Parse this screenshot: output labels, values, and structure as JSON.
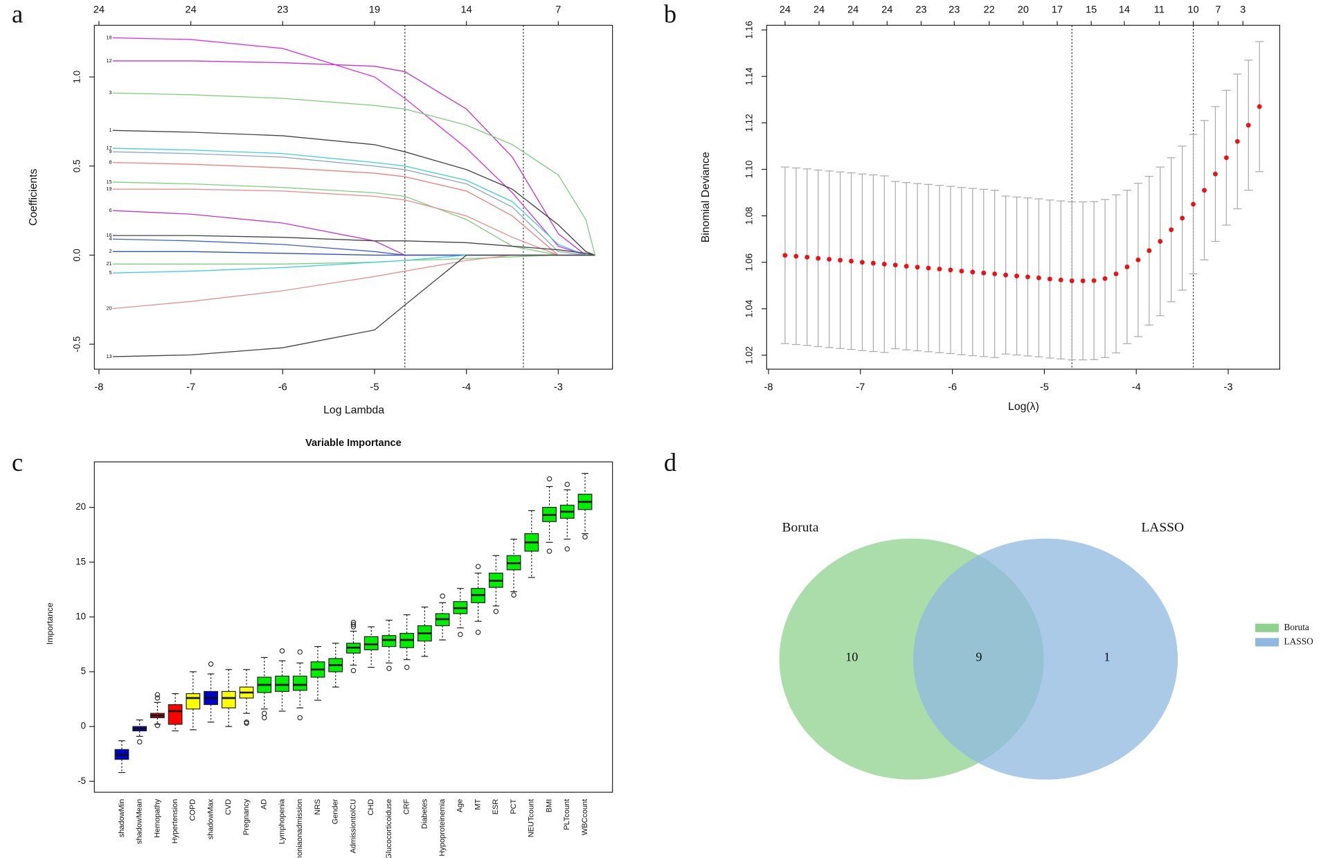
{
  "chart_data": [
    {
      "type": "line",
      "panel_label": "a",
      "x_label": "Log Lambda",
      "y_label": "Coefficients",
      "xlim": [
        -8.05,
        -2.41
      ],
      "xticks": [
        -8,
        -7,
        -6,
        -5,
        -4,
        -3
      ],
      "ylim": [
        -0.64,
        1.29
      ],
      "yticks": [
        -0.5,
        {
          "value": 0,
          "label": "0.0"
        },
        0.5,
        {
          "value": 1,
          "label": "1.0"
        }
      ],
      "top_ticks": [
        {
          "value": -8,
          "label": "24"
        },
        {
          "value": -7,
          "label": "24"
        },
        {
          "value": -6,
          "label": "23"
        },
        {
          "value": -5,
          "label": "19"
        },
        {
          "value": -4,
          "label": "14"
        },
        {
          "value": -3,
          "label": "7"
        }
      ],
      "vlines": [
        -4.67,
        -3.38
      ],
      "x": [
        -7.85,
        -7,
        -6,
        -5,
        -4.67,
        -4,
        -3.5,
        -3,
        -2.7,
        -2.6
      ],
      "series": [
        {
          "name": "18",
          "color": "#e033e0",
          "values": [
            1.22,
            1.21,
            1.16,
            1.0,
            0.88,
            0.6,
            0.35,
            0.05,
            0,
            0
          ]
        },
        {
          "name": "12",
          "color": "#cc33cc",
          "values": [
            1.09,
            1.09,
            1.08,
            1.06,
            1.03,
            0.82,
            0.55,
            0.12,
            0,
            0
          ]
        },
        {
          "name": "3",
          "color": "#7fcf7f",
          "values": [
            0.91,
            0.9,
            0.88,
            0.84,
            0.82,
            0.73,
            0.62,
            0.45,
            0.2,
            0
          ]
        },
        {
          "name": "1",
          "color": "#444444",
          "values": [
            0.7,
            0.69,
            0.67,
            0.62,
            0.58,
            0.48,
            0.37,
            0.17,
            0.02,
            0
          ]
        },
        {
          "name": "17",
          "color": "#40d0e0",
          "values": [
            0.6,
            0.59,
            0.57,
            0.52,
            0.5,
            0.42,
            0.3,
            0.06,
            0,
            0
          ]
        },
        {
          "name": "9",
          "color": "#8fa8c8",
          "values": [
            0.58,
            0.57,
            0.55,
            0.5,
            0.48,
            0.4,
            0.27,
            0.02,
            0,
            0
          ]
        },
        {
          "name": "8",
          "color": "#f08080",
          "values": [
            0.52,
            0.51,
            0.49,
            0.46,
            0.44,
            0.36,
            0.22,
            0,
            0,
            0
          ]
        },
        {
          "name": "15",
          "color": "#7fcf7f",
          "values": [
            0.41,
            0.4,
            0.38,
            0.35,
            0.33,
            0.2,
            0.05,
            0,
            0,
            0
          ]
        },
        {
          "name": "19",
          "color": "#e89090",
          "values": [
            0.37,
            0.37,
            0.36,
            0.33,
            0.31,
            0.22,
            0.1,
            0,
            0,
            0
          ]
        },
        {
          "name": "6",
          "color": "#cc33cc",
          "values": [
            0.25,
            0.23,
            0.18,
            0.08,
            0,
            0,
            0,
            0,
            0,
            0
          ]
        },
        {
          "name": "16",
          "color": "#444444",
          "values": [
            0.11,
            0.11,
            0.1,
            0.08,
            0.08,
            0.07,
            0.05,
            0.03,
            0.01,
            0
          ]
        },
        {
          "name": "4",
          "color": "#4060e0",
          "values": [
            0.09,
            0.08,
            0.06,
            0.02,
            0,
            0,
            0,
            0,
            0,
            0
          ]
        },
        {
          "name": "2",
          "color": "#3050d0",
          "values": [
            0.02,
            0.02,
            0.01,
            0,
            0,
            0,
            0,
            0,
            0,
            0
          ]
        },
        {
          "name": "21",
          "color": "#7fcf7f",
          "values": [
            -0.05,
            -0.05,
            -0.05,
            -0.04,
            -0.03,
            -0.02,
            -0.01,
            0,
            0,
            0
          ]
        },
        {
          "name": "5",
          "color": "#40d0e0",
          "values": [
            -0.1,
            -0.09,
            -0.07,
            -0.04,
            -0.03,
            0,
            0,
            0,
            0,
            0
          ]
        },
        {
          "name": "20",
          "color": "#e89090",
          "values": [
            -0.3,
            -0.26,
            -0.2,
            -0.12,
            -0.09,
            -0.03,
            0,
            0,
            0,
            0
          ]
        },
        {
          "name": "13",
          "color": "#444444",
          "values": [
            -0.57,
            -0.56,
            -0.52,
            -0.42,
            -0.28,
            0,
            0,
            0,
            0,
            0
          ]
        }
      ]
    },
    {
      "type": "errorbar",
      "panel_label": "b",
      "x_label": "Log(λ)",
      "y_label": "Binomial Deviance",
      "xlim": [
        -8.02,
        -2.44
      ],
      "xticks": [
        -8,
        -7,
        -6,
        -5,
        -4,
        -3
      ],
      "ylim": [
        1.014,
        1.162
      ],
      "yticks": [
        1.02,
        1.04,
        1.06,
        1.08,
        {
          "value": 1.1,
          "label": "1.10"
        },
        1.12,
        1.14,
        1.16
      ],
      "top_ticks": [
        {
          "value": -7.82,
          "label": "24"
        },
        {
          "value": -7.45,
          "label": "24"
        },
        {
          "value": -7.08,
          "label": "24"
        },
        {
          "value": -6.71,
          "label": "24"
        },
        {
          "value": -6.34,
          "label": "23"
        },
        {
          "value": -5.98,
          "label": "23"
        },
        {
          "value": -5.6,
          "label": "22"
        },
        {
          "value": -5.23,
          "label": "20"
        },
        {
          "value": -4.86,
          "label": "17"
        },
        {
          "value": -4.49,
          "label": "15"
        },
        {
          "value": -4.13,
          "label": "14"
        },
        {
          "value": -3.75,
          "label": "11"
        },
        {
          "value": -3.38,
          "label": "10"
        },
        {
          "value": -3.11,
          "label": "7"
        },
        {
          "value": -2.84,
          "label": "3"
        }
      ],
      "vlines": [
        -4.7,
        -3.38
      ],
      "color": "#ee1111",
      "error_color": "#aaaaaa",
      "x": [
        -7.82,
        -7.7,
        -7.58,
        -7.46,
        -7.34,
        -7.22,
        -7.1,
        -6.98,
        -6.86,
        -6.74,
        -6.62,
        -6.5,
        -6.38,
        -6.26,
        -6.14,
        -6.02,
        -5.9,
        -5.78,
        -5.66,
        -5.54,
        -5.42,
        -5.3,
        -5.18,
        -5.06,
        -4.94,
        -4.82,
        -4.7,
        -4.58,
        -4.46,
        -4.34,
        -4.22,
        -4.1,
        -3.98,
        -3.86,
        -3.74,
        -3.62,
        -3.5,
        -3.38,
        -3.26,
        -3.14,
        -3.02,
        -2.9,
        -2.78,
        -2.66
      ],
      "values": [
        1.063,
        1.0626,
        1.0622,
        1.0617,
        1.0613,
        1.0609,
        1.0605,
        1.06,
        1.0596,
        1.0592,
        1.0588,
        1.0583,
        1.0579,
        1.0575,
        1.0571,
        1.0567,
        1.0562,
        1.0558,
        1.0554,
        1.055,
        1.0545,
        1.0541,
        1.0537,
        1.0533,
        1.0528,
        1.0524,
        1.052,
        1.052,
        1.0521,
        1.053,
        1.055,
        1.058,
        1.061,
        1.065,
        1.069,
        1.074,
        1.079,
        1.085,
        1.091,
        1.098,
        1.105,
        1.112,
        1.119,
        1.127
      ],
      "errors": [
        0.038,
        0.038,
        0.038,
        0.038,
        0.038,
        0.038,
        0.038,
        0.038,
        0.038,
        0.038,
        0.036,
        0.036,
        0.036,
        0.036,
        0.036,
        0.036,
        0.036,
        0.036,
        0.036,
        0.036,
        0.034,
        0.034,
        0.034,
        0.034,
        0.034,
        0.034,
        0.034,
        0.034,
        0.034,
        0.034,
        0.034,
        0.033,
        0.033,
        0.032,
        0.032,
        0.031,
        0.031,
        0.03,
        0.03,
        0.029,
        0.029,
        0.029,
        0.028,
        0.028
      ]
    },
    {
      "type": "boxplot",
      "panel_label": "c",
      "title": "Variable Importance",
      "y_label": "Importance",
      "ylim": [
        -6,
        24.15
      ],
      "yticks": [
        -5,
        0,
        5,
        10,
        15,
        20
      ],
      "categories": [
        "shadowMin",
        "shadowMean",
        "Hemopathy",
        "Hypertension",
        "COPD",
        "shadowMax",
        "CVD",
        "Pregnancy",
        "AD",
        "Lymphopenia",
        "moniaonadmission",
        "NRS",
        "Gender",
        "AdmissiontoICU",
        "CHD",
        "Glucocorticoiduse",
        "CRF",
        "Diabetes",
        "Hypoproteinemia",
        "Age",
        "MT",
        "ESR",
        "PCT",
        "NEUTcount",
        "BMI",
        "PLTcount",
        "WBCcount"
      ],
      "colors": [
        "#0000cc",
        "#0000cc",
        "#cc0000",
        "#ff0000",
        "#ffff00",
        "#0000cc",
        "#ffff00",
        "#ffff00",
        "#00ee00",
        "#00ee00",
        "#00ee00",
        "#00ee00",
        "#00ee00",
        "#00ee00",
        "#00ee00",
        "#00ee00",
        "#00ee00",
        "#00ee00",
        "#00ee00",
        "#00ee00",
        "#00ee00",
        "#00ee00",
        "#00ee00",
        "#00ee00",
        "#00ee00",
        "#00ee00",
        "#00ee00"
      ],
      "boxes": [
        {
          "median": -2.6,
          "q1": -3.0,
          "q3": -2.1,
          "low": -4.2,
          "high": -1.3,
          "outliers": []
        },
        {
          "median": -0.2,
          "q1": -0.4,
          "q3": 0.0,
          "low": -0.9,
          "high": 0.6,
          "outliers": [
            -1.4
          ]
        },
        {
          "median": 1.0,
          "q1": 0.8,
          "q3": 1.2,
          "low": 0.2,
          "high": 2.2,
          "outliers": [
            2.9,
            2.6,
            0.1
          ]
        },
        {
          "median": 1.4,
          "q1": 0.2,
          "q3": 2.0,
          "low": -0.4,
          "high": 3.0,
          "outliers": []
        },
        {
          "median": 2.6,
          "q1": 1.6,
          "q3": 3.0,
          "low": -0.3,
          "high": 5.0,
          "outliers": []
        },
        {
          "median": 2.6,
          "q1": 2.0,
          "q3": 3.2,
          "low": 0.4,
          "high": 4.8,
          "outliers": [
            5.7
          ]
        },
        {
          "median": 2.6,
          "q1": 1.7,
          "q3": 3.2,
          "low": 0.0,
          "high": 5.2,
          "outliers": []
        },
        {
          "median": 3.1,
          "q1": 2.6,
          "q3": 3.6,
          "low": 1.2,
          "high": 5.2,
          "outliers": [
            0.4,
            0.3
          ]
        },
        {
          "median": 3.8,
          "q1": 3.1,
          "q3": 4.5,
          "low": 1.6,
          "high": 6.3,
          "outliers": [
            1.2,
            0.8
          ]
        },
        {
          "median": 3.8,
          "q1": 3.2,
          "q3": 4.6,
          "low": 1.4,
          "high": 6.0,
          "outliers": [
            6.9
          ]
        },
        {
          "median": 3.8,
          "q1": 3.3,
          "q3": 4.6,
          "low": 1.7,
          "high": 5.8,
          "outliers": [
            6.8,
            0.8
          ]
        },
        {
          "median": 5.2,
          "q1": 4.5,
          "q3": 5.9,
          "low": 2.4,
          "high": 7.3,
          "outliers": []
        },
        {
          "median": 5.6,
          "q1": 5.0,
          "q3": 6.2,
          "low": 3.6,
          "high": 7.6,
          "outliers": []
        },
        {
          "median": 7.2,
          "q1": 6.7,
          "q3": 7.6,
          "low": 5.6,
          "high": 8.7,
          "outliers": [
            9.5,
            9.3,
            9.1,
            5.1
          ]
        },
        {
          "median": 7.5,
          "q1": 7.0,
          "q3": 8.2,
          "low": 5.4,
          "high": 9.1,
          "outliers": []
        },
        {
          "median": 7.9,
          "q1": 7.3,
          "q3": 8.3,
          "low": 5.8,
          "high": 9.7,
          "outliers": [
            5.3
          ]
        },
        {
          "median": 7.9,
          "q1": 7.2,
          "q3": 8.5,
          "low": 6.1,
          "high": 10.2,
          "outliers": [
            5.4
          ]
        },
        {
          "median": 8.5,
          "q1": 7.8,
          "q3": 9.2,
          "low": 6.4,
          "high": 10.9,
          "outliers": []
        },
        {
          "median": 9.8,
          "q1": 9.2,
          "q3": 10.3,
          "low": 7.9,
          "high": 11.3,
          "outliers": [
            11.9
          ]
        },
        {
          "median": 10.8,
          "q1": 10.3,
          "q3": 11.4,
          "low": 9.0,
          "high": 12.6,
          "outliers": [
            8.4
          ]
        },
        {
          "median": 12.0,
          "q1": 11.3,
          "q3": 12.6,
          "low": 9.6,
          "high": 14.0,
          "outliers": [
            14.6,
            8.6
          ]
        },
        {
          "median": 13.3,
          "q1": 12.7,
          "q3": 14.0,
          "low": 11.0,
          "high": 15.6,
          "outliers": [
            10.5
          ]
        },
        {
          "median": 14.9,
          "q1": 14.3,
          "q3": 15.6,
          "low": 12.3,
          "high": 17.1,
          "outliers": [
            12.0
          ]
        },
        {
          "median": 16.8,
          "q1": 16.0,
          "q3": 17.6,
          "low": 13.6,
          "high": 19.7,
          "outliers": []
        },
        {
          "median": 19.3,
          "q1": 18.7,
          "q3": 20.0,
          "low": 16.8,
          "high": 21.9,
          "outliers": [
            22.6,
            16.0
          ]
        },
        {
          "median": 19.6,
          "q1": 19.0,
          "q3": 20.2,
          "low": 17.1,
          "high": 21.6,
          "outliers": [
            22.1,
            16.2
          ]
        },
        {
          "median": 20.5,
          "q1": 19.8,
          "q3": 21.2,
          "low": 17.6,
          "high": 23.1,
          "outliers": [
            17.3
          ]
        }
      ]
    },
    {
      "type": "venn",
      "panel_label": "d",
      "sets": [
        {
          "name": "Boruta",
          "color": "#8fd18f",
          "only": 10
        },
        {
          "name": "LASSO",
          "color": "#8fb8e0",
          "only": 1
        }
      ],
      "intersection": 9
    }
  ]
}
